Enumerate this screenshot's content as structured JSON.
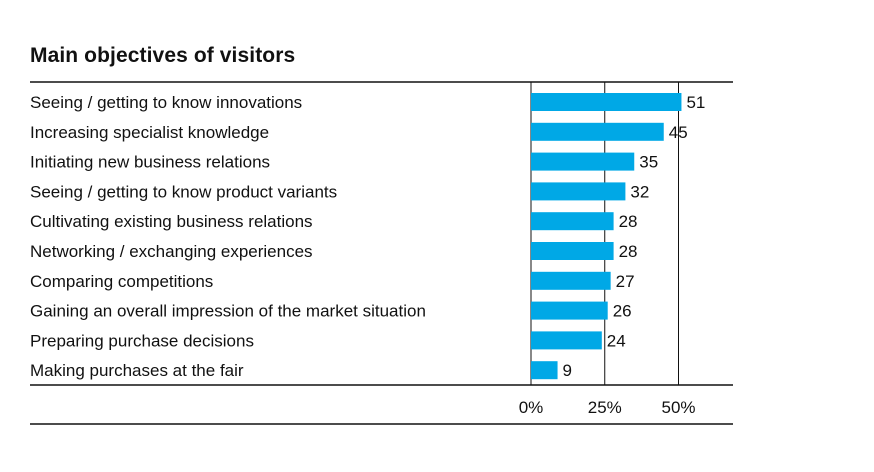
{
  "chart_data": {
    "type": "bar",
    "orientation": "horizontal",
    "title": "Main objectives of visitors",
    "categories": [
      "Seeing / getting to know innovations",
      "Increasing specialist knowledge",
      "Initiating new business relations",
      "Seeing / getting to know product variants",
      "Cultivating existing business relations",
      "Networking / exchanging experiences",
      "Comparing competitions",
      "Gaining an overall impression of the market situation",
      "Preparing purchase decisions",
      "Making purchases at the fair"
    ],
    "values": [
      51,
      45,
      35,
      32,
      28,
      28,
      27,
      26,
      24,
      9
    ],
    "xlim": [
      0,
      60
    ],
    "ticks": [
      0,
      25,
      50
    ],
    "tick_labels": [
      "0%",
      "25%",
      "50%"
    ],
    "bar_color": "#00a8e6",
    "gridlines": true
  }
}
